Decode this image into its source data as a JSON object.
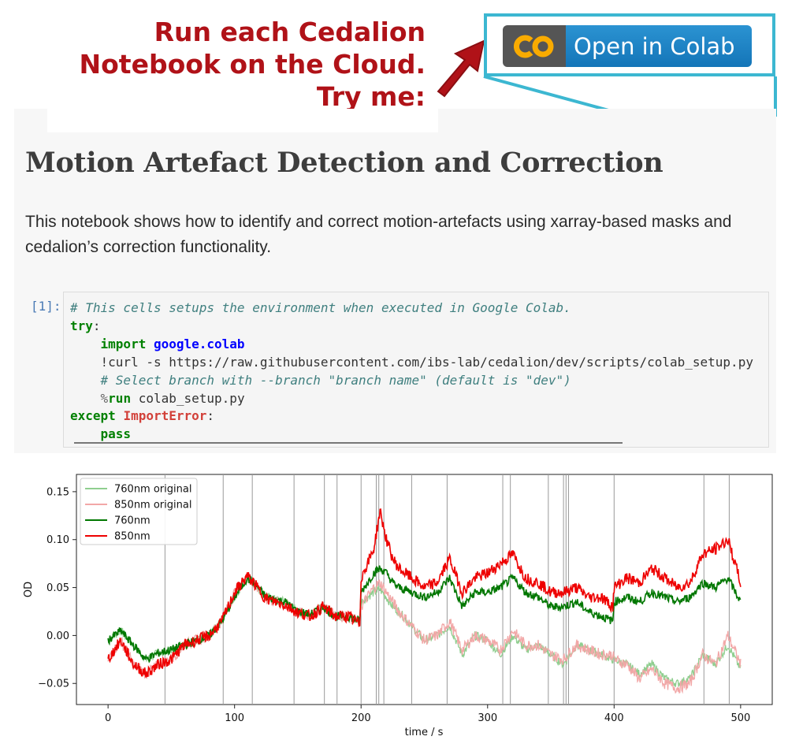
{
  "callout": {
    "line1": "Run each Cedalion",
    "line2": "Notebook on the Cloud.",
    "line3": "Try me:"
  },
  "badge": {
    "logo_text": "CO",
    "label": "Open in Colab"
  },
  "colors": {
    "accent": "#3cb7d1",
    "callout_red": "#b01218",
    "colab_blue": "#1475b8",
    "colab_orange": "#f9ab00"
  },
  "notebook": {
    "title": "Motion Artefact Detection and Correction",
    "description": "This notebook shows how to identify and correct motion-artefacts using xarray-based masks and cedalion’s correction functionality.",
    "cell_prompt": "[1]:",
    "code": {
      "comment1": "# This cells setups the environment when executed in Google Colab.",
      "try": "try",
      "import_kw": "import",
      "module": "google.colab",
      "curl": "!curl -s https://raw.githubusercontent.com/ibs-lab/cedalion/dev/scripts/colab_setup.py",
      "comment2": "# Select branch with --branch \"branch name\" (default is \"dev\")",
      "run_magic": "%",
      "run_kw": "run",
      "run_arg": " colab_setup.py",
      "except_kw": "except",
      "error_name": "ImportError",
      "pass_kw": "pass"
    }
  },
  "chart_data": {
    "type": "line",
    "xlabel": "time / s",
    "ylabel": "OD",
    "xlim": [
      -25,
      525
    ],
    "ylim": [
      -0.072,
      0.168
    ],
    "xticks": [
      0,
      100,
      200,
      300,
      400,
      500
    ],
    "yticks": [
      -0.05,
      0.0,
      0.05,
      0.1,
      0.15
    ],
    "ytick_labels": [
      "−0.05",
      "0.00",
      "0.05",
      "0.10",
      "0.15"
    ],
    "legend_location": "upper-left",
    "artifact_markers_s": [
      45,
      91,
      114,
      147,
      171,
      181,
      200,
      212,
      214,
      218,
      240,
      268,
      312,
      318,
      348,
      360,
      362,
      364,
      400,
      471,
      491
    ],
    "series": [
      {
        "name": "760nm original",
        "color": "#8fce8f",
        "x": [
          0,
          10,
          20,
          30,
          40,
          50,
          60,
          70,
          80,
          90,
          100,
          110,
          115,
          125,
          140,
          150,
          160,
          170,
          180,
          190,
          199,
          200,
          205,
          210,
          215,
          220,
          225,
          230,
          240,
          250,
          260,
          270,
          280,
          290,
          300,
          310,
          320,
          330,
          340,
          350,
          360,
          370,
          380,
          390,
          399,
          400,
          410,
          420,
          430,
          440,
          450,
          460,
          470,
          480,
          490,
          500
        ],
        "y": [
          -0.005,
          0.005,
          -0.01,
          -0.025,
          -0.018,
          -0.015,
          -0.01,
          -0.005,
          0.0,
          0.015,
          0.04,
          0.06,
          0.055,
          0.04,
          0.035,
          0.025,
          0.022,
          0.03,
          0.02,
          0.02,
          0.015,
          0.035,
          0.04,
          0.045,
          0.048,
          0.04,
          0.03,
          0.025,
          0.01,
          -0.005,
          0.0,
          0.01,
          -0.02,
          0.0,
          -0.005,
          -0.02,
          0.0,
          -0.015,
          -0.01,
          -0.02,
          -0.03,
          -0.01,
          -0.015,
          -0.02,
          -0.025,
          -0.025,
          -0.03,
          -0.04,
          -0.03,
          -0.045,
          -0.05,
          -0.045,
          -0.02,
          -0.03,
          -0.01,
          -0.035
        ]
      },
      {
        "name": "850nm original",
        "color": "#f2a7a7",
        "x": [
          0,
          10,
          20,
          30,
          40,
          50,
          60,
          70,
          80,
          90,
          100,
          110,
          115,
          125,
          140,
          150,
          160,
          170,
          180,
          190,
          199,
          200,
          205,
          210,
          215,
          220,
          225,
          230,
          240,
          250,
          260,
          270,
          280,
          290,
          300,
          310,
          320,
          330,
          340,
          350,
          360,
          370,
          380,
          390,
          399,
          400,
          410,
          420,
          430,
          440,
          450,
          460,
          470,
          480,
          490,
          500
        ],
        "y": [
          -0.025,
          -0.005,
          -0.03,
          -0.04,
          -0.03,
          -0.025,
          -0.01,
          -0.005,
          0.0,
          0.015,
          0.045,
          0.062,
          0.055,
          0.038,
          0.032,
          0.024,
          0.02,
          0.03,
          0.02,
          0.02,
          0.012,
          0.03,
          0.04,
          0.05,
          0.055,
          0.045,
          0.035,
          0.025,
          0.01,
          -0.005,
          0.0,
          0.015,
          -0.015,
          0.0,
          -0.005,
          -0.015,
          0.005,
          -0.01,
          -0.01,
          -0.02,
          -0.025,
          -0.01,
          -0.015,
          -0.02,
          -0.02,
          -0.025,
          -0.03,
          -0.045,
          -0.035,
          -0.05,
          -0.055,
          -0.05,
          -0.02,
          -0.03,
          0.0,
          -0.03
        ]
      },
      {
        "name": "760nm",
        "color": "#007700",
        "x": [
          0,
          10,
          20,
          30,
          40,
          50,
          60,
          70,
          80,
          90,
          100,
          110,
          115,
          125,
          140,
          150,
          160,
          170,
          180,
          190,
          199,
          200,
          205,
          210,
          215,
          220,
          225,
          230,
          240,
          250,
          260,
          270,
          280,
          290,
          300,
          310,
          320,
          330,
          340,
          350,
          360,
          370,
          380,
          390,
          399,
          400,
          410,
          420,
          430,
          440,
          450,
          460,
          470,
          480,
          490,
          500
        ],
        "y": [
          -0.005,
          0.005,
          -0.01,
          -0.025,
          -0.018,
          -0.015,
          -0.01,
          -0.005,
          0.0,
          0.015,
          0.04,
          0.06,
          0.055,
          0.04,
          0.035,
          0.025,
          0.022,
          0.03,
          0.02,
          0.02,
          0.015,
          0.045,
          0.055,
          0.065,
          0.07,
          0.065,
          0.055,
          0.05,
          0.045,
          0.04,
          0.045,
          0.06,
          0.03,
          0.045,
          0.045,
          0.05,
          0.06,
          0.045,
          0.04,
          0.03,
          0.03,
          0.035,
          0.025,
          0.02,
          0.015,
          0.035,
          0.04,
          0.035,
          0.045,
          0.04,
          0.035,
          0.04,
          0.055,
          0.05,
          0.06,
          0.035
        ]
      },
      {
        "name": "850nm",
        "color": "#ee0000",
        "x": [
          0,
          10,
          20,
          30,
          40,
          50,
          60,
          70,
          80,
          90,
          100,
          110,
          115,
          125,
          140,
          150,
          160,
          170,
          180,
          190,
          199,
          200,
          205,
          210,
          215,
          220,
          225,
          230,
          240,
          250,
          260,
          270,
          280,
          290,
          300,
          310,
          320,
          330,
          340,
          350,
          360,
          370,
          380,
          390,
          399,
          400,
          410,
          420,
          430,
          440,
          450,
          460,
          470,
          480,
          490,
          500
        ],
        "y": [
          -0.025,
          -0.005,
          -0.03,
          -0.04,
          -0.03,
          -0.025,
          -0.01,
          -0.005,
          0.0,
          0.015,
          0.045,
          0.062,
          0.055,
          0.038,
          0.032,
          0.024,
          0.02,
          0.03,
          0.02,
          0.02,
          0.012,
          0.06,
          0.075,
          0.09,
          0.13,
          0.1,
          0.08,
          0.07,
          0.06,
          0.05,
          0.055,
          0.08,
          0.045,
          0.06,
          0.065,
          0.075,
          0.085,
          0.06,
          0.055,
          0.045,
          0.045,
          0.05,
          0.04,
          0.04,
          0.03,
          0.05,
          0.06,
          0.055,
          0.07,
          0.06,
          0.05,
          0.055,
          0.085,
          0.09,
          0.1,
          0.055
        ]
      }
    ]
  }
}
